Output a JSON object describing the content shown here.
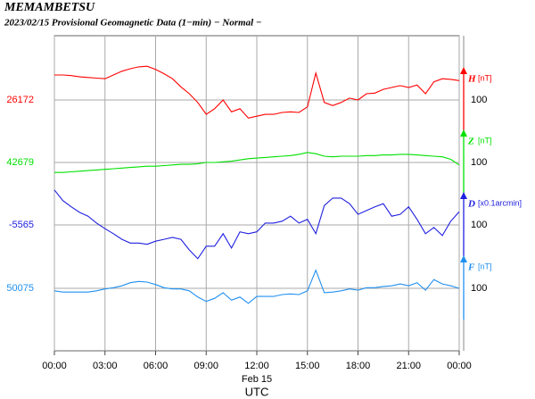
{
  "chart_data": {
    "type": "line",
    "title": "MEMAMBETSU",
    "subtitle": "2023/02/15  Provisional Geomagnetic Data (1−min)  − Normal −",
    "x_date_label": "Feb 15",
    "xlabel": "UTC",
    "xlim": [
      0,
      24
    ],
    "xticks": [
      {
        "value": 0,
        "label": "00:00"
      },
      {
        "value": 3,
        "label": "03:00"
      },
      {
        "value": 6,
        "label": "06:00"
      },
      {
        "value": 9,
        "label": "09:00"
      },
      {
        "value": 12,
        "label": "12:00"
      },
      {
        "value": 15,
        "label": "15:00"
      },
      {
        "value": 18,
        "label": "18:00"
      },
      {
        "value": 21,
        "label": "21:00"
      },
      {
        "value": 24,
        "label": "00:00"
      }
    ],
    "grid": true,
    "x": [
      0,
      0.5,
      1,
      1.5,
      2,
      2.5,
      3,
      3.5,
      4,
      4.5,
      5,
      5.5,
      6,
      6.5,
      7,
      7.5,
      8,
      8.5,
      9,
      9.5,
      10,
      10.5,
      11,
      11.5,
      12,
      12.5,
      13,
      13.5,
      14,
      14.5,
      15,
      15.5,
      16,
      16.5,
      17,
      17.5,
      18,
      18.5,
      19,
      19.5,
      20,
      20.5,
      21,
      21.5,
      22,
      22.5,
      23,
      23.5,
      24
    ],
    "series": [
      {
        "name": "H",
        "unit": "[nT]",
        "color": "#ff0000",
        "reference": 26172,
        "scale": 100,
        "values": [
          26212,
          26212,
          26211,
          26209,
          26208,
          26207,
          26206,
          26212,
          26218,
          26222,
          26225,
          26226,
          26221,
          26214,
          26206,
          26193,
          26182,
          26168,
          26149,
          26158,
          26172,
          26153,
          26158,
          26143,
          26146,
          26149,
          26149,
          26152,
          26153,
          26152,
          26161,
          26215,
          26168,
          26163,
          26168,
          26175,
          26172,
          26182,
          26183,
          26189,
          26192,
          26195,
          26192,
          26196,
          26182,
          26201,
          26206,
          26205,
          26203
        ]
      },
      {
        "name": "Z",
        "unit": "[nT]",
        "color": "#00e000",
        "reference": 42679,
        "scale": 100,
        "values": [
          42663,
          42663,
          42664,
          42665,
          42666,
          42667,
          42668,
          42669,
          42670,
          42671,
          42672,
          42673,
          42673,
          42674,
          42675,
          42676,
          42676,
          42677,
          42679,
          42679,
          42680,
          42681,
          42683,
          42685,
          42686,
          42687,
          42688,
          42689,
          42690,
          42692,
          42695,
          42693,
          42689,
          42688,
          42689,
          42689,
          42689,
          42690,
          42690,
          42691,
          42691,
          42692,
          42692,
          42691,
          42690,
          42689,
          42688,
          42684,
          42675
        ]
      },
      {
        "name": "D",
        "unit": "[x0.1arcmin]",
        "color": "#2020e0",
        "reference": -5565,
        "scale": 100,
        "values": [
          -5509,
          -5526,
          -5536,
          -5545,
          -5551,
          -5562,
          -5571,
          -5579,
          -5588,
          -5594,
          -5594,
          -5596,
          -5591,
          -5588,
          -5585,
          -5588,
          -5605,
          -5619,
          -5599,
          -5599,
          -5579,
          -5602,
          -5576,
          -5579,
          -5576,
          -5562,
          -5562,
          -5559,
          -5551,
          -5562,
          -5556,
          -5579,
          -5534,
          -5522,
          -5522,
          -5531,
          -5548,
          -5542,
          -5536,
          -5531,
          -5551,
          -5548,
          -5536,
          -5556,
          -5579,
          -5569,
          -5582,
          -5559,
          -5544
        ]
      },
      {
        "name": "F",
        "unit": "[nT]",
        "color": "#2090f0",
        "reference": 50075,
        "scale": 100,
        "values": [
          50071,
          50069,
          50069,
          50069,
          50069,
          50071,
          50074,
          50076,
          50079,
          50084,
          50086,
          50085,
          50081,
          50076,
          50074,
          50074,
          50071,
          50061,
          50054,
          50059,
          50068,
          50056,
          50061,
          50051,
          50062,
          50062,
          50062,
          50065,
          50066,
          50065,
          50071,
          50104,
          50068,
          50069,
          50071,
          50074,
          50072,
          50076,
          50076,
          50078,
          50079,
          50082,
          50079,
          50084,
          50072,
          50089,
          50082,
          50079,
          50075
        ]
      }
    ]
  }
}
